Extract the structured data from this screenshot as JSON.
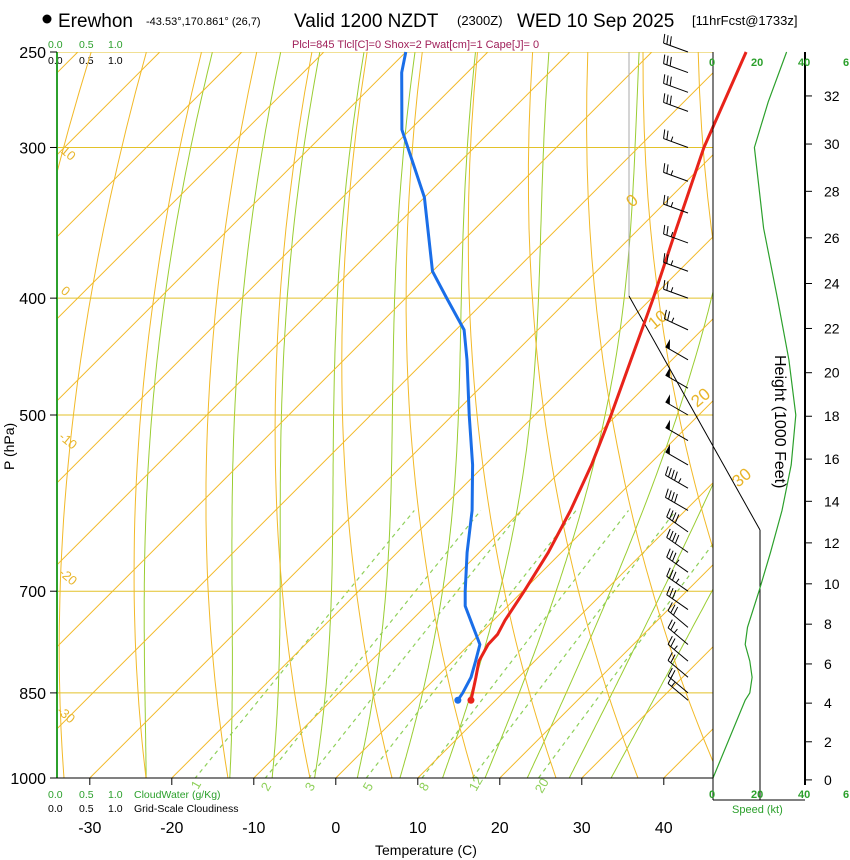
{
  "header": {
    "station": "Erewhon",
    "coords": "-43.53°,170.861° (26,7)",
    "valid": "Valid 1200 NZDT",
    "utc": "(2300Z)",
    "date": "WED 10 Sep 2025",
    "forecast": "[11hrFcst@1733z]",
    "params": "Plcl=845 Tlcl[C]=0 Shox=2 Pwat[cm]=1 Cape[J]= 0"
  },
  "colors": {
    "temperature": "#e8231a",
    "dewpoint": "#1a6ee8",
    "isotherm": "#f2b928",
    "dry_adiabat": "#f2b928",
    "moist_adiabat": "#9acd32",
    "mixing_ratio": "#8fd05a",
    "cloud": "#2ca02c",
    "title_params": "#a0205a"
  },
  "chart_data": {
    "type": "skew-t",
    "xlabel": "Temperature (C)",
    "ylabel": "P (hPa)",
    "y2label": "Height (1000 Feet)",
    "x_ticks": [
      "-30",
      "-20",
      "-10",
      "0",
      "10",
      "20",
      "30",
      "40"
    ],
    "x_tick_values": [
      -30,
      -20,
      -10,
      0,
      10,
      20,
      30,
      40
    ],
    "pressure_ticks": [
      "250",
      "300",
      "400",
      "500",
      "700",
      "850",
      "1000"
    ],
    "pressure_tick_values": [
      250,
      300,
      400,
      500,
      700,
      850,
      1000
    ],
    "pressure_range": [
      1000,
      250
    ],
    "temperature_range_at_surface": [
      -34,
      46
    ],
    "height_ticks": [
      "0",
      "2",
      "4",
      "6",
      "8",
      "10",
      "12",
      "14",
      "16",
      "18",
      "20",
      "22",
      "24",
      "26",
      "28",
      "30",
      "32"
    ],
    "height_tick_values": [
      0,
      2,
      4,
      6,
      8,
      10,
      12,
      14,
      16,
      18,
      20,
      22,
      24,
      26,
      28,
      30,
      32
    ],
    "isotherm_labels": [
      "10",
      "0",
      "-10",
      "-20",
      "-30",
      "0",
      "10",
      "20",
      "30"
    ],
    "isotherm_label_values": [
      10,
      0,
      -10,
      -20,
      -30,
      0,
      10,
      20,
      30
    ],
    "mixing_ratio_labels": [
      "1",
      "2",
      "3",
      "5",
      "8",
      "12",
      "20"
    ],
    "mixing_ratio_values": [
      1,
      2,
      3,
      5,
      8,
      12,
      20
    ],
    "cloud_top_scale": [
      "0.0",
      "0.5",
      "1.0"
    ],
    "cloud_bottom_scale": [
      "0.0",
      "0.5",
      "1.0"
    ],
    "cloudwater_label": "CloudWater (g/Kg)",
    "cloudiness_label": "Grid-Scale Cloudiness",
    "speed_ticks_top": [
      "0",
      "20",
      "40",
      "6"
    ],
    "speed_ticks_bottom": [
      "0",
      "20",
      "40",
      "6"
    ],
    "speed_label": "Speed (kt)",
    "temperature_profile": {
      "name": "Temperature",
      "points": [
        [
          862,
          7.0
        ],
        [
          850,
          6.3
        ],
        [
          825,
          4.8
        ],
        [
          800,
          3.2
        ],
        [
          775,
          2.3
        ],
        [
          760,
          2.2
        ],
        [
          740,
          1.4
        ],
        [
          700,
          0.2
        ],
        [
          650,
          -1.6
        ],
        [
          600,
          -4.0
        ],
        [
          550,
          -7.0
        ],
        [
          500,
          -10.7
        ],
        [
          450,
          -15.0
        ],
        [
          400,
          -19.8
        ],
        [
          350,
          -25.5
        ],
        [
          300,
          -32.0
        ],
        [
          250,
          -38.5
        ]
      ]
    },
    "dewpoint_profile": {
      "name": "Dewpoint",
      "points": [
        [
          862,
          5.4
        ],
        [
          850,
          5.1
        ],
        [
          825,
          4.2
        ],
        [
          800,
          2.8
        ],
        [
          775,
          1.3
        ],
        [
          750,
          -1.6
        ],
        [
          720,
          -5.2
        ],
        [
          700,
          -7.0
        ],
        [
          650,
          -11.5
        ],
        [
          600,
          -16.0
        ],
        [
          550,
          -21.5
        ],
        [
          500,
          -28.0
        ],
        [
          450,
          -35.0
        ],
        [
          425,
          -39.0
        ],
        [
          400,
          -45.0
        ],
        [
          380,
          -50.0
        ],
        [
          330,
          -60.0
        ],
        [
          290,
          -71.0
        ],
        [
          260,
          -78.0
        ],
        [
          250,
          -80.0
        ]
      ]
    },
    "wind_profile": {
      "name": "Wind barbs",
      "levels_hpa": [
        250,
        260,
        270,
        280,
        300,
        320,
        340,
        360,
        380,
        400,
        425,
        450,
        475,
        500,
        525,
        550,
        575,
        600,
        625,
        650,
        675,
        700,
        725,
        750,
        775,
        800,
        825,
        850,
        862
      ],
      "speed_kt": [
        30,
        30,
        30,
        30,
        25,
        25,
        25,
        25,
        25,
        25,
        25,
        50,
        50,
        50,
        50,
        50,
        45,
        40,
        40,
        40,
        35,
        35,
        30,
        30,
        25,
        25,
        20,
        20,
        15
      ],
      "direction_deg": [
        290,
        290,
        290,
        290,
        290,
        290,
        290,
        290,
        290,
        290,
        295,
        300,
        300,
        300,
        300,
        300,
        300,
        300,
        305,
        305,
        305,
        305,
        305,
        310,
        310,
        310,
        310,
        310,
        310
      ]
    },
    "wind_speed_profile": {
      "name": "Speed",
      "points": [
        [
          1000,
          0
        ],
        [
          862,
          14
        ],
        [
          850,
          16
        ],
        [
          825,
          17
        ],
        [
          800,
          16
        ],
        [
          775,
          14
        ],
        [
          750,
          15
        ],
        [
          700,
          20
        ],
        [
          650,
          25
        ],
        [
          600,
          30
        ],
        [
          550,
          34
        ],
        [
          500,
          36
        ],
        [
          450,
          33
        ],
        [
          400,
          28
        ],
        [
          350,
          22
        ],
        [
          300,
          18
        ],
        [
          275,
          24
        ],
        [
          250,
          32
        ]
      ]
    }
  }
}
